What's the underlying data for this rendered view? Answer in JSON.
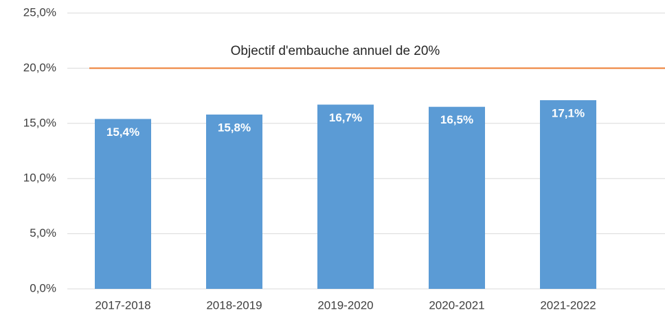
{
  "chart_data": {
    "type": "bar",
    "categories": [
      "2017-2018",
      "2018-2019",
      "2019-2020",
      "2020-2021",
      "2021-2022"
    ],
    "values": [
      15.4,
      15.8,
      16.7,
      16.5,
      17.1
    ],
    "value_labels": [
      "15,4%",
      "15,8%",
      "16,7%",
      "16,5%",
      "17,1%"
    ],
    "color": "#5b9bd5",
    "ylim": [
      0,
      25
    ],
    "yticks": [
      {
        "value": 0,
        "label": "0,0%"
      },
      {
        "value": 5,
        "label": "5,0%"
      },
      {
        "value": 10,
        "label": "10,0%"
      },
      {
        "value": 15,
        "label": "15,0%"
      },
      {
        "value": 20,
        "label": "20,0%"
      },
      {
        "value": 25,
        "label": "25,0%"
      }
    ],
    "grid": true,
    "target": {
      "value": 20,
      "label": "Objectif d'embauche annuel de 20%",
      "color": "#ed7d31"
    }
  }
}
